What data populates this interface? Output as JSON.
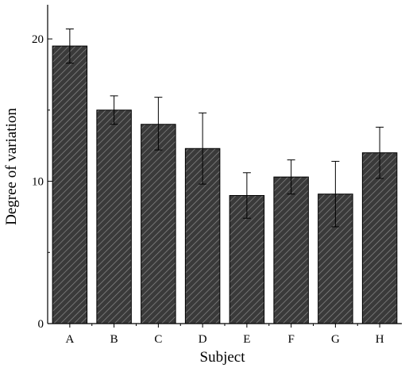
{
  "chart_data": {
    "type": "bar",
    "title": "",
    "xlabel": "Subject",
    "ylabel": "Degree of variation",
    "categories": [
      "A",
      "B",
      "C",
      "D",
      "E",
      "F",
      "G",
      "H"
    ],
    "values": [
      19.5,
      15.0,
      14.0,
      12.3,
      9.0,
      10.3,
      9.1,
      12.0
    ],
    "error_upper": [
      20.7,
      16.0,
      15.9,
      14.8,
      10.6,
      11.5,
      11.4,
      13.8
    ],
    "error_lower": [
      18.3,
      14.0,
      12.2,
      9.8,
      7.4,
      9.1,
      6.8,
      10.2
    ],
    "ylim": [
      0,
      22.4
    ],
    "yticks": [
      0,
      10,
      20
    ],
    "bar_color": "#3a3a3a",
    "hatch_color": "#8a8a8a",
    "grid": false
  }
}
